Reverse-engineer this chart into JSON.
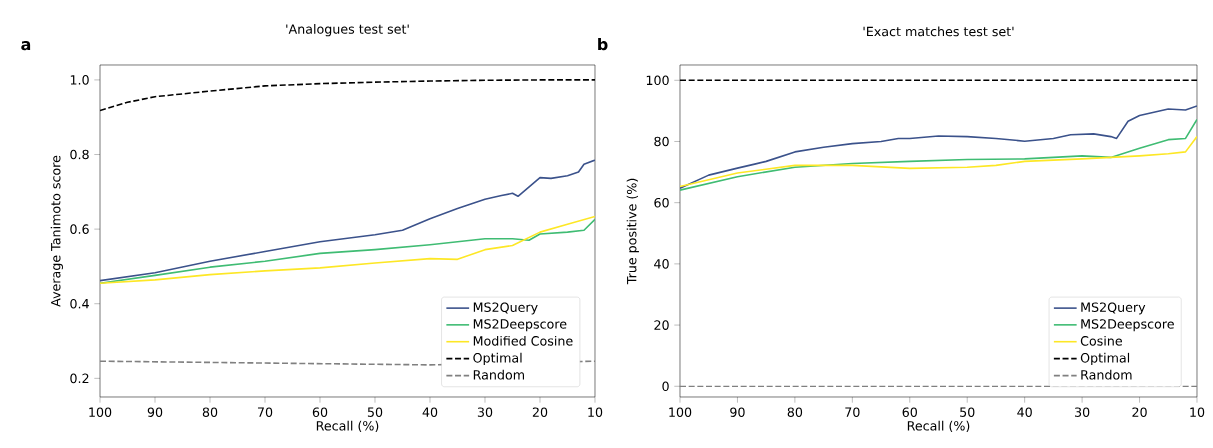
{
  "chart_data": [
    {
      "type": "line",
      "title": "'Analogues test set'",
      "xlabel": "Recall (%)",
      "ylabel": "Average Tanimoto score",
      "annotations": [
        "a"
      ],
      "legend": "bottom right",
      "xlim": [
        100,
        10
      ],
      "ylim": [
        0.15,
        1.04
      ],
      "xticks": [
        100,
        90,
        80,
        70,
        60,
        50,
        40,
        30,
        20,
        10
      ],
      "yticks": [
        0.2,
        0.4,
        0.6,
        0.8,
        {
          "value": 1.0,
          "label": "1.0"
        }
      ],
      "series": [
        {
          "name": "MS2Query",
          "color": "#3b528b",
          "line_style": "solid",
          "x": [
            100,
            90,
            80,
            70,
            60,
            50,
            45,
            40,
            35,
            30,
            27,
            25,
            24,
            20,
            18,
            15,
            13,
            12,
            10
          ],
          "values": [
            0.462,
            0.483,
            0.514,
            0.54,
            0.566,
            0.585,
            0.597,
            0.628,
            0.655,
            0.68,
            0.69,
            0.696,
            0.688,
            0.738,
            0.736,
            0.743,
            0.753,
            0.774,
            0.785
          ]
        },
        {
          "name": "MS2Deepscore",
          "color": "#3fbc73",
          "line_style": "solid",
          "x": [
            100,
            90,
            80,
            70,
            60,
            50,
            40,
            30,
            25,
            22,
            20,
            15,
            12,
            10
          ],
          "values": [
            0.455,
            0.476,
            0.498,
            0.514,
            0.535,
            0.545,
            0.558,
            0.574,
            0.574,
            0.57,
            0.587,
            0.592,
            0.597,
            0.626
          ]
        },
        {
          "name": "Modified Cosine",
          "color": "#fde725",
          "line_style": "solid",
          "x": [
            100,
            90,
            80,
            70,
            60,
            50,
            40,
            35,
            30,
            25,
            20,
            15,
            10
          ],
          "values": [
            0.455,
            0.464,
            0.478,
            0.488,
            0.496,
            0.509,
            0.521,
            0.519,
            0.545,
            0.556,
            0.592,
            0.613,
            0.634
          ]
        },
        {
          "name": "Optimal",
          "color": "#000000",
          "line_style": "dashed",
          "x": [
            100,
            95,
            90,
            80,
            70,
            60,
            50,
            40,
            30,
            20,
            10
          ],
          "values": [
            0.918,
            0.94,
            0.955,
            0.97,
            0.984,
            0.99,
            0.994,
            0.997,
            0.999,
            1.0,
            1.0
          ]
        },
        {
          "name": "Random",
          "color": "#808080",
          "line_style": "dashed",
          "x": [
            100,
            70,
            40,
            10
          ],
          "values": [
            0.246,
            0.241,
            0.236,
            0.246
          ]
        }
      ]
    },
    {
      "type": "line",
      "title": "'Exact matches test set'",
      "xlabel": "Recall (%)",
      "ylabel": "True positive (%)",
      "annotations": [
        "b"
      ],
      "legend": "bottom right",
      "xlim": [
        100,
        10
      ],
      "ylim": [
        -3.5,
        105
      ],
      "xticks": [
        100,
        90,
        80,
        70,
        60,
        50,
        40,
        30,
        20,
        10
      ],
      "yticks": [
        0,
        20,
        40,
        60,
        80,
        100
      ],
      "series": [
        {
          "name": "MS2Query",
          "color": "#3b528b",
          "line_style": "solid",
          "x": [
            100,
            95,
            90,
            87,
            85,
            80,
            75,
            70,
            65,
            62,
            60,
            55,
            50,
            45,
            40,
            35,
            32,
            28,
            25,
            24,
            22,
            20,
            15,
            12,
            10
          ],
          "values": [
            64.7,
            69,
            71.3,
            72.6,
            73.5,
            76.6,
            78.1,
            79.3,
            80,
            81,
            81,
            81.8,
            81.6,
            81,
            80.1,
            81,
            82.2,
            82.5,
            81.6,
            81,
            86.6,
            88.5,
            90.6,
            90.3,
            91.6
          ]
        },
        {
          "name": "MS2Deepscore",
          "color": "#3fbc73",
          "line_style": "solid",
          "x": [
            100,
            90,
            80,
            70,
            60,
            50,
            40,
            30,
            25,
            20,
            15,
            12,
            10
          ],
          "values": [
            64.1,
            68.5,
            71.6,
            72.8,
            73.5,
            74.1,
            74.3,
            75.3,
            74.8,
            77.8,
            80.6,
            81,
            87.2
          ]
        },
        {
          "name": "Cosine",
          "color": "#fde725",
          "line_style": "solid",
          "x": [
            100,
            90,
            80,
            70,
            60,
            50,
            45,
            40,
            30,
            20,
            15,
            12,
            10
          ],
          "values": [
            65.3,
            69.7,
            72.2,
            72.2,
            71.2,
            71.6,
            72.2,
            73.5,
            74.3,
            75.3,
            76,
            76.6,
            81.6
          ]
        },
        {
          "name": "Optimal",
          "color": "#000000",
          "line_style": "dashed",
          "x": [
            100,
            10
          ],
          "values": [
            100,
            100
          ]
        },
        {
          "name": "Random",
          "color": "#808080",
          "line_style": "dashed",
          "x": [
            100,
            10
          ],
          "values": [
            0,
            0
          ]
        }
      ]
    }
  ]
}
